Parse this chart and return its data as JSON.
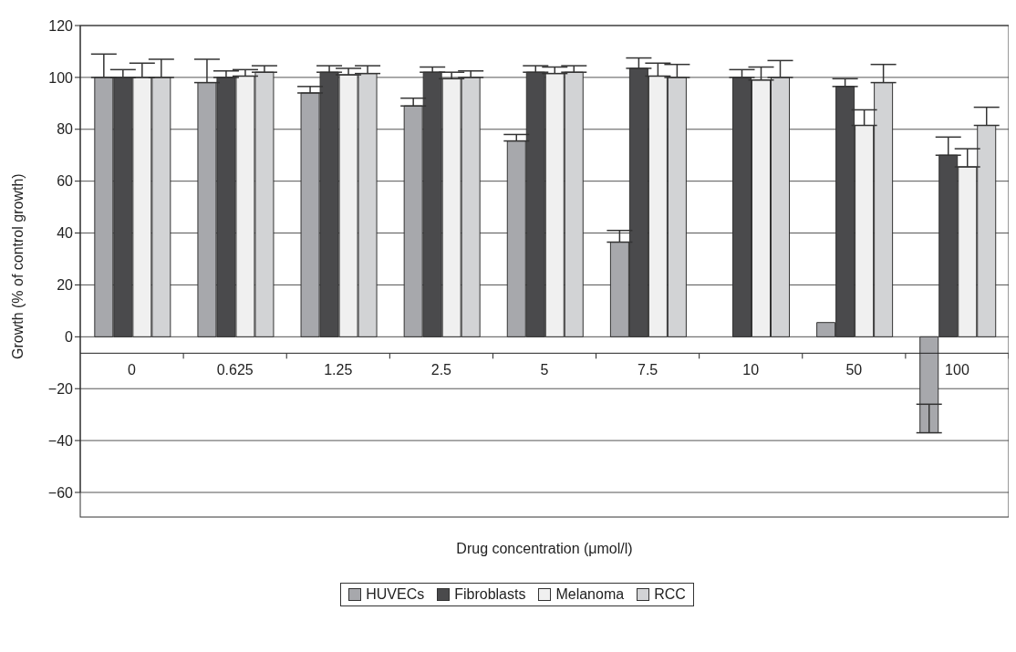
{
  "chart_data": {
    "type": "bar",
    "xlabel": "Drug concentration (μmol/l)",
    "ylabel": "Growth (% of control growth)",
    "categories": [
      "0",
      "0.625",
      "1.25",
      "2.5",
      "5",
      "7.5",
      "10",
      "50",
      "100"
    ],
    "series": [
      {
        "name": "HUVECs",
        "color": "#a7a8ac",
        "values": [
          100,
          98,
          94,
          89,
          75.5,
          36.5,
          0,
          5.5,
          -37
        ],
        "errors": [
          [
            100,
            109
          ],
          [
            98,
            107
          ],
          [
            94,
            96.5
          ],
          [
            89,
            92
          ],
          [
            75.5,
            78
          ],
          [
            36.5,
            41
          ],
          null,
          null,
          [
            -37,
            -26
          ]
        ]
      },
      {
        "name": "Fibroblasts",
        "color": "#4a4a4c",
        "values": [
          100,
          100,
          102,
          102,
          102,
          103.5,
          100,
          96.5,
          70
        ],
        "errors": [
          [
            100,
            103
          ],
          [
            100,
            102.5
          ],
          [
            102,
            104.5
          ],
          [
            102,
            104
          ],
          [
            102,
            104.5
          ],
          [
            103.5,
            107.5
          ],
          [
            100,
            103
          ],
          [
            96.5,
            99.5
          ],
          [
            70,
            77
          ]
        ]
      },
      {
        "name": "Melanoma",
        "color": "#f0f0f0",
        "values": [
          100,
          100.5,
          101,
          99.5,
          101.5,
          100.5,
          99,
          81.5,
          65.5
        ],
        "errors": [
          [
            100,
            105.5
          ],
          [
            100.5,
            103
          ],
          [
            101,
            103.5
          ],
          [
            99.5,
            102
          ],
          [
            101.5,
            104
          ],
          [
            100.5,
            105.5
          ],
          [
            99,
            104
          ],
          [
            81.5,
            87.5
          ],
          [
            65.5,
            72.5
          ]
        ]
      },
      {
        "name": "RCC",
        "color": "#d2d3d5",
        "values": [
          100,
          102,
          101.5,
          100,
          102,
          100,
          100,
          98,
          81.5
        ],
        "errors": [
          [
            100,
            107
          ],
          [
            102,
            104.5
          ],
          [
            101.5,
            104.5
          ],
          [
            100,
            102.5
          ],
          [
            102,
            104.5
          ],
          [
            100,
            105
          ],
          [
            100,
            106.5
          ],
          [
            98,
            105
          ],
          [
            81.5,
            88.5
          ]
        ]
      }
    ],
    "ylim": [
      -60,
      120
    ],
    "yticks": [
      {
        "value": -60,
        "label": "−60"
      },
      {
        "value": -40,
        "label": "−40"
      },
      {
        "value": -20,
        "label": "−20"
      },
      0,
      20,
      40,
      60,
      80,
      100,
      120
    ],
    "grid": "y",
    "legend": "bottom"
  }
}
